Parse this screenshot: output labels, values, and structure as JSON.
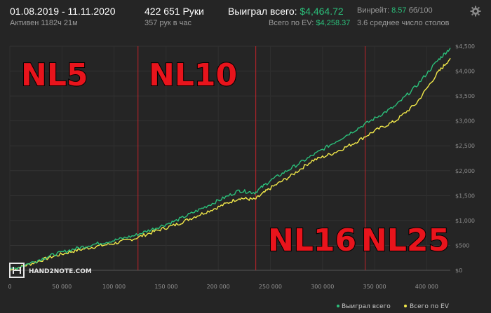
{
  "header": {
    "date_range": "01.08.2019 - 11.11.2020",
    "active": "Активен 1182ч 21м",
    "hands": "422 651 Руки",
    "hands_per_hour": "357 рук в час",
    "won_label": "Выиграл всего:",
    "won_value": "$4,464.72",
    "ev_label": "Всего по EV:",
    "ev_value": "$4,258.37",
    "winrate_label": "Винрейт:",
    "winrate_value": "8.57",
    "winrate_unit": "бб/100",
    "tables": "3.6 среднее число столов"
  },
  "watermark": "HAND2NOTE.COM",
  "chart_data": {
    "type": "line",
    "x_ticks": [
      "0",
      "50 000",
      "100 000",
      "150 000",
      "200 000",
      "250 000",
      "300 000",
      "350 000",
      "400 000"
    ],
    "y_ticks": [
      "$0",
      "$500",
      "$1,000",
      "$1,500",
      "$2,000",
      "$2,500",
      "$3,000",
      "$3,500",
      "$4,000",
      "$4,500"
    ],
    "xlim": [
      0,
      422651
    ],
    "ylim": [
      0,
      4500
    ],
    "grid": true,
    "legend_position": "bottom-right",
    "series": [
      {
        "name": "Выиграл всего",
        "color": "#2bbf7a",
        "x": [
          0,
          20000,
          40000,
          60000,
          80000,
          100000,
          120000,
          140000,
          160000,
          180000,
          200000,
          220000,
          235000,
          250000,
          270000,
          290000,
          310000,
          330000,
          350000,
          370000,
          390000,
          410000,
          422651
        ],
        "values": [
          0,
          150,
          300,
          420,
          520,
          600,
          700,
          850,
          1000,
          1200,
          1400,
          1600,
          1560,
          1800,
          2050,
          2300,
          2550,
          2800,
          3050,
          3300,
          3700,
          4200,
          4464.72
        ]
      },
      {
        "name": "Всего по EV",
        "color": "#f2e94a",
        "x": [
          0,
          20000,
          40000,
          60000,
          80000,
          100000,
          120000,
          140000,
          160000,
          180000,
          200000,
          220000,
          235000,
          250000,
          270000,
          290000,
          310000,
          330000,
          350000,
          370000,
          390000,
          410000,
          422651
        ],
        "values": [
          0,
          130,
          270,
          380,
          470,
          540,
          640,
          790,
          920,
          1100,
          1270,
          1450,
          1420,
          1650,
          1900,
          2200,
          2350,
          2550,
          2800,
          3000,
          3350,
          3950,
          4258.37
        ]
      }
    ],
    "markers": [
      {
        "label": "NL5",
        "x": 0
      },
      {
        "label": "NL10",
        "x": 123000
      },
      {
        "label": "NL16",
        "x": 236000
      },
      {
        "label": "NL25",
        "x": 341000
      }
    ]
  }
}
